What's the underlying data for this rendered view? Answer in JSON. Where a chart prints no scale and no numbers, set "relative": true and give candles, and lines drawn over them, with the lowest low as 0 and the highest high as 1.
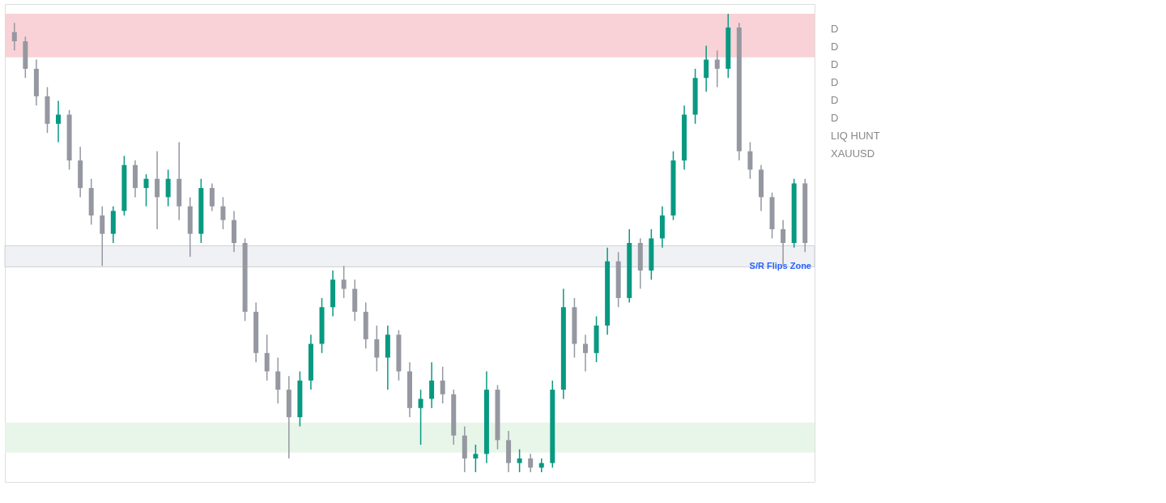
{
  "chart_data": {
    "type": "candlestick",
    "relative": true,
    "categories": [
      null,
      null,
      null,
      null,
      null,
      null,
      null,
      null,
      null,
      null,
      null,
      null,
      null,
      null,
      null,
      null,
      null,
      null,
      null,
      null,
      null,
      null,
      null,
      null,
      null,
      null,
      null,
      null,
      null,
      null,
      null,
      null,
      null,
      null,
      null,
      null,
      null,
      null,
      null,
      null,
      null,
      null,
      null,
      null,
      null,
      null,
      null,
      null,
      null,
      null,
      null,
      null,
      null,
      null,
      null,
      null,
      null,
      null,
      null,
      null,
      null,
      null,
      null,
      null,
      null,
      null,
      null,
      null,
      null,
      null,
      null,
      null,
      null
    ],
    "ohlc": [
      [
        0.96,
        0.98,
        0.92,
        0.94
      ],
      [
        0.94,
        0.95,
        0.86,
        0.88
      ],
      [
        0.88,
        0.9,
        0.8,
        0.82
      ],
      [
        0.82,
        0.84,
        0.74,
        0.76
      ],
      [
        0.76,
        0.81,
        0.72,
        0.78
      ],
      [
        0.78,
        0.79,
        0.66,
        0.68
      ],
      [
        0.68,
        0.71,
        0.6,
        0.62
      ],
      [
        0.62,
        0.64,
        0.54,
        0.56
      ],
      [
        0.56,
        0.58,
        0.45,
        0.52
      ],
      [
        0.52,
        0.58,
        0.5,
        0.57
      ],
      [
        0.57,
        0.69,
        0.56,
        0.67
      ],
      [
        0.67,
        0.68,
        0.6,
        0.62
      ],
      [
        0.62,
        0.65,
        0.58,
        0.64
      ],
      [
        0.64,
        0.7,
        0.53,
        0.6
      ],
      [
        0.6,
        0.66,
        0.58,
        0.64
      ],
      [
        0.64,
        0.72,
        0.55,
        0.58
      ],
      [
        0.58,
        0.6,
        0.47,
        0.52
      ],
      [
        0.52,
        0.64,
        0.5,
        0.62
      ],
      [
        0.62,
        0.63,
        0.57,
        0.58
      ],
      [
        0.58,
        0.6,
        0.53,
        0.55
      ],
      [
        0.55,
        0.57,
        0.48,
        0.5
      ],
      [
        0.5,
        0.51,
        0.33,
        0.35
      ],
      [
        0.35,
        0.37,
        0.24,
        0.26
      ],
      [
        0.26,
        0.3,
        0.2,
        0.22
      ],
      [
        0.22,
        0.25,
        0.15,
        0.18
      ],
      [
        0.18,
        0.21,
        0.03,
        0.12
      ],
      [
        0.12,
        0.22,
        0.1,
        0.2
      ],
      [
        0.2,
        0.3,
        0.18,
        0.28
      ],
      [
        0.28,
        0.38,
        0.26,
        0.36
      ],
      [
        0.36,
        0.44,
        0.34,
        0.42
      ],
      [
        0.42,
        0.45,
        0.38,
        0.4
      ],
      [
        0.4,
        0.42,
        0.33,
        0.35
      ],
      [
        0.35,
        0.37,
        0.27,
        0.29
      ],
      [
        0.29,
        0.32,
        0.22,
        0.25
      ],
      [
        0.25,
        0.32,
        0.18,
        0.3
      ],
      [
        0.3,
        0.31,
        0.2,
        0.22
      ],
      [
        0.22,
        0.24,
        0.12,
        0.14
      ],
      [
        0.14,
        0.18,
        0.06,
        0.16
      ],
      [
        0.16,
        0.24,
        0.14,
        0.2
      ],
      [
        0.2,
        0.23,
        0.15,
        0.17
      ],
      [
        0.17,
        0.18,
        0.06,
        0.08
      ],
      [
        0.08,
        0.1,
        0.0,
        0.03
      ],
      [
        0.03,
        0.06,
        0.0,
        0.04
      ],
      [
        0.04,
        0.22,
        0.02,
        0.18
      ],
      [
        0.18,
        0.19,
        0.05,
        0.07
      ],
      [
        0.07,
        0.09,
        0.0,
        0.02
      ],
      [
        0.02,
        0.05,
        0.0,
        0.03
      ],
      [
        0.03,
        0.04,
        0.0,
        0.01
      ],
      [
        0.01,
        0.03,
        0.0,
        0.02
      ],
      [
        0.02,
        0.2,
        0.01,
        0.18
      ],
      [
        0.18,
        0.4,
        0.16,
        0.36
      ],
      [
        0.36,
        0.38,
        0.25,
        0.28
      ],
      [
        0.28,
        0.3,
        0.22,
        0.26
      ],
      [
        0.26,
        0.34,
        0.24,
        0.32
      ],
      [
        0.32,
        0.49,
        0.3,
        0.46
      ],
      [
        0.46,
        0.48,
        0.36,
        0.38
      ],
      [
        0.38,
        0.53,
        0.37,
        0.5
      ],
      [
        0.5,
        0.51,
        0.4,
        0.44
      ],
      [
        0.44,
        0.53,
        0.42,
        0.51
      ],
      [
        0.51,
        0.58,
        0.49,
        0.56
      ],
      [
        0.56,
        0.7,
        0.55,
        0.68
      ],
      [
        0.68,
        0.8,
        0.66,
        0.78
      ],
      [
        0.78,
        0.88,
        0.76,
        0.86
      ],
      [
        0.86,
        0.93,
        0.83,
        0.9
      ],
      [
        0.9,
        0.92,
        0.84,
        0.88
      ],
      [
        0.88,
        1.0,
        0.86,
        0.97
      ],
      [
        0.97,
        0.98,
        0.68,
        0.7
      ],
      [
        0.7,
        0.72,
        0.64,
        0.66
      ],
      [
        0.66,
        0.67,
        0.57,
        0.6
      ],
      [
        0.6,
        0.61,
        0.51,
        0.53
      ],
      [
        0.53,
        0.55,
        0.45,
        0.5
      ],
      [
        0.5,
        0.64,
        0.49,
        0.63
      ],
      [
        0.63,
        0.64,
        0.48,
        0.5
      ]
    ],
    "colors": [
      "#9598a1",
      "#9598a1",
      "#9598a1",
      "#9598a1",
      "#089981",
      "#9598a1",
      "#9598a1",
      "#9598a1",
      "#9598a1",
      "#089981",
      "#089981",
      "#9598a1",
      "#089981",
      "#9598a1",
      "#089981",
      "#9598a1",
      "#9598a1",
      "#089981",
      "#9598a1",
      "#9598a1",
      "#9598a1",
      "#9598a1",
      "#9598a1",
      "#9598a1",
      "#9598a1",
      "#9598a1",
      "#089981",
      "#089981",
      "#089981",
      "#089981",
      "#9598a1",
      "#9598a1",
      "#9598a1",
      "#9598a1",
      "#089981",
      "#9598a1",
      "#9598a1",
      "#089981",
      "#089981",
      "#9598a1",
      "#9598a1",
      "#9598a1",
      "#089981",
      "#089981",
      "#9598a1",
      "#9598a1",
      "#089981",
      "#9598a1",
      "#089981",
      "#089981",
      "#089981",
      "#9598a1",
      "#9598a1",
      "#089981",
      "#089981",
      "#9598a1",
      "#089981",
      "#9598a1",
      "#089981",
      "#089981",
      "#089981",
      "#089981",
      "#089981",
      "#089981",
      "#9598a1",
      "#089981",
      "#9598a1",
      "#9598a1",
      "#9598a1",
      "#9598a1",
      "#9598a1",
      "#089981",
      "#9598a1"
    ],
    "bands": [
      {
        "axis": "y",
        "from": 0.905,
        "to": 1.0,
        "color": "#f7cdd1"
      },
      {
        "axis": "y",
        "from": 0.448,
        "to": 0.494,
        "label": "S/R Flips Zone",
        "color": "#eef0f3"
      },
      {
        "axis": "y",
        "from": 0.043,
        "to": 0.108,
        "color": "#e6f4e7"
      }
    ],
    "annotations": [
      "D",
      "D",
      "D",
      "D",
      "D",
      "D",
      "LIQ HUNT",
      "XAUUSD"
    ]
  }
}
